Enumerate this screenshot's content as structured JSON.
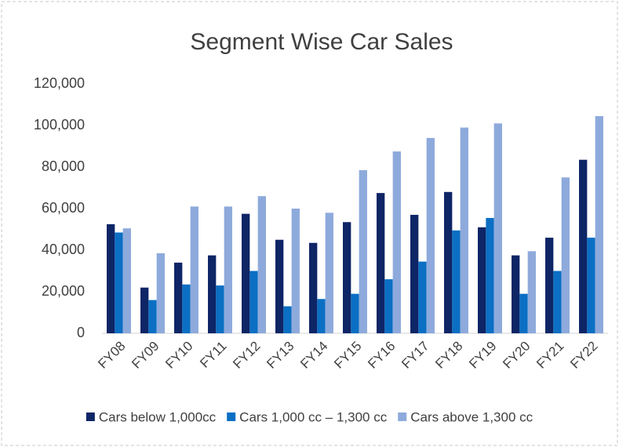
{
  "chart_data": {
    "type": "bar",
    "title": "Segment Wise Car Sales",
    "categories": [
      "FY08",
      "FY09",
      "FY10",
      "FY11",
      "FY12",
      "FY13",
      "FY14",
      "FY15",
      "FY16",
      "FY17",
      "FY18",
      "FY19",
      "FY20",
      "FY21",
      "FY22"
    ],
    "series": [
      {
        "name": "Cars below 1,000cc",
        "color": "#0e2566",
        "values": [
          52500,
          22000,
          34000,
          37500,
          57500,
          45000,
          43500,
          53500,
          67500,
          57000,
          68000,
          51000,
          37500,
          46000,
          83500
        ]
      },
      {
        "name": "Cars 1,000 cc – 1,300 cc",
        "color": "#0b6fc4",
        "values": [
          48500,
          16000,
          23500,
          23000,
          30000,
          13000,
          16500,
          19000,
          26000,
          34500,
          49500,
          55500,
          19000,
          30000,
          46000
        ]
      },
      {
        "name": "Cars above  1,300 cc",
        "color": "#8eaadc",
        "values": [
          50500,
          38500,
          61000,
          61000,
          66000,
          60000,
          58000,
          78500,
          87500,
          94000,
          99000,
          101000,
          39500,
          75000,
          104500
        ]
      }
    ],
    "ylim": [
      0,
      120000
    ],
    "yticks": [
      0,
      {
        "value": 20000,
        "label": "20,000"
      },
      {
        "value": 40000,
        "label": "40,000"
      },
      {
        "value": 60000,
        "label": "60,000"
      },
      {
        "value": 80000,
        "label": "80,000"
      },
      {
        "value": 100000,
        "label": "100,000"
      },
      {
        "value": 120000,
        "label": "120,000"
      }
    ]
  }
}
